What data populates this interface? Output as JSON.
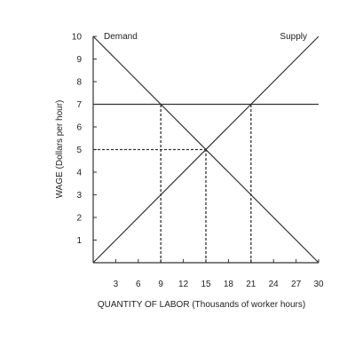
{
  "chart_data": {
    "type": "line",
    "xlabel": "QUANTITY OF LABOR (Thousands of worker hours)",
    "ylabel": "WAGE (Dollars per hour)",
    "xlim": [
      0,
      30
    ],
    "ylim": [
      0,
      10
    ],
    "x_ticks": [
      3,
      6,
      9,
      12,
      15,
      18,
      21,
      24,
      27,
      30
    ],
    "y_ticks": [
      1,
      2,
      3,
      4,
      5,
      6,
      7,
      8,
      9,
      10
    ],
    "grid": false,
    "series": [
      {
        "name": "Demand",
        "x": [
          0,
          30
        ],
        "y": [
          10,
          0
        ]
      },
      {
        "name": "Supply",
        "x": [
          0,
          30
        ],
        "y": [
          0,
          10
        ]
      },
      {
        "name": "",
        "x": [
          0,
          30
        ],
        "y": [
          7,
          7
        ]
      }
    ],
    "guides": [
      {
        "from": [
          9,
          0
        ],
        "to": [
          9,
          7
        ]
      },
      {
        "from": [
          21,
          0
        ],
        "to": [
          21,
          7
        ]
      },
      {
        "from": [
          15,
          0
        ],
        "to": [
          15,
          5
        ]
      },
      {
        "from": [
          0,
          5
        ],
        "to": [
          15,
          5
        ]
      }
    ],
    "colors": {
      "line": "#333333",
      "text": "#222222"
    }
  }
}
